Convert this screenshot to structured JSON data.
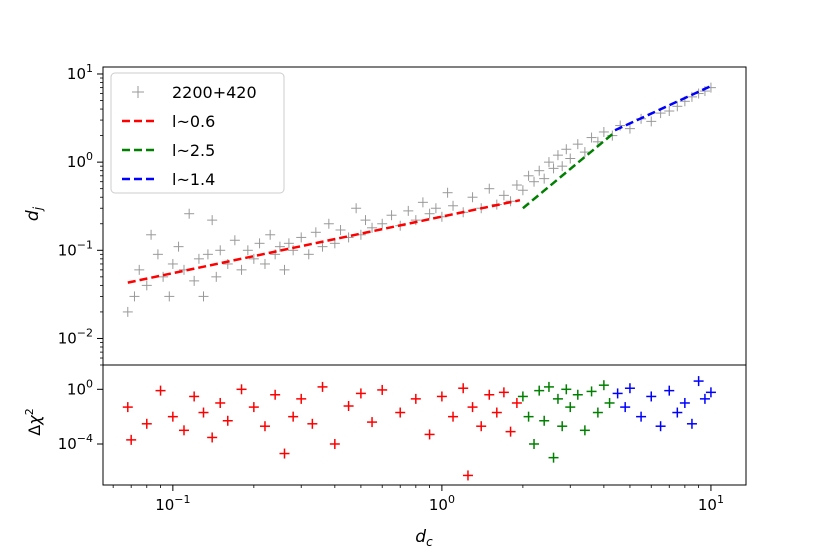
{
  "chart_data": {
    "type": "scatter",
    "panels": [
      {
        "id": "top",
        "xscale": "log",
        "yscale": "log",
        "xlim": [
          0.055,
          13.5
        ],
        "ylim": [
          0.005,
          12
        ],
        "ylabel": "d_j",
        "yticks": [
          {
            "value": 0.01,
            "base": "10",
            "exp": "−2"
          },
          {
            "value": 0.1,
            "base": "10",
            "exp": "−1"
          },
          {
            "value": 1,
            "base": "10",
            "exp": "0"
          },
          {
            "value": 10,
            "base": "10",
            "exp": "1"
          }
        ],
        "legend": {
          "placement": "upper-left",
          "entries": [
            {
              "label": "2200+420",
              "marker": "+",
              "color": "#999999"
            },
            {
              "label": "l~0.6",
              "line": "dashed",
              "color": "#ff0000"
            },
            {
              "label": "l~2.5",
              "line": "dashed",
              "color": "#008000"
            },
            {
              "label": "l~1.4",
              "line": "dashed",
              "color": "#0000ff"
            }
          ]
        },
        "scatter_series": {
          "name": "2200+420",
          "color": "#999999",
          "points": [
            [
              0.068,
              0.02
            ],
            [
              0.072,
              0.03
            ],
            [
              0.075,
              0.06
            ],
            [
              0.08,
              0.04
            ],
            [
              0.083,
              0.15
            ],
            [
              0.088,
              0.09
            ],
            [
              0.092,
              0.05
            ],
            [
              0.097,
              0.03
            ],
            [
              0.1,
              0.07
            ],
            [
              0.105,
              0.11
            ],
            [
              0.11,
              0.06
            ],
            [
              0.115,
              0.26
            ],
            [
              0.12,
              0.045
            ],
            [
              0.125,
              0.08
            ],
            [
              0.13,
              0.03
            ],
            [
              0.135,
              0.09
            ],
            [
              0.14,
              0.22
            ],
            [
              0.145,
              0.05
            ],
            [
              0.15,
              0.1
            ],
            [
              0.16,
              0.07
            ],
            [
              0.17,
              0.13
            ],
            [
              0.18,
              0.06
            ],
            [
              0.19,
              0.1
            ],
            [
              0.2,
              0.08
            ],
            [
              0.21,
              0.12
            ],
            [
              0.22,
              0.07
            ],
            [
              0.23,
              0.15
            ],
            [
              0.24,
              0.09
            ],
            [
              0.25,
              0.11
            ],
            [
              0.26,
              0.06
            ],
            [
              0.27,
              0.12
            ],
            [
              0.28,
              0.1
            ],
            [
              0.3,
              0.14
            ],
            [
              0.32,
              0.09
            ],
            [
              0.34,
              0.16
            ],
            [
              0.36,
              0.11
            ],
            [
              0.38,
              0.2
            ],
            [
              0.4,
              0.12
            ],
            [
              0.42,
              0.17
            ],
            [
              0.45,
              0.14
            ],
            [
              0.48,
              0.3
            ],
            [
              0.5,
              0.15
            ],
            [
              0.52,
              0.22
            ],
            [
              0.55,
              0.18
            ],
            [
              0.6,
              0.2
            ],
            [
              0.65,
              0.25
            ],
            [
              0.7,
              0.19
            ],
            [
              0.75,
              0.28
            ],
            [
              0.8,
              0.22
            ],
            [
              0.85,
              0.35
            ],
            [
              0.9,
              0.26
            ],
            [
              0.95,
              0.3
            ],
            [
              1.0,
              0.24
            ],
            [
              1.05,
              0.45
            ],
            [
              1.1,
              0.32
            ],
            [
              1.2,
              0.27
            ],
            [
              1.3,
              0.4
            ],
            [
              1.4,
              0.3
            ],
            [
              1.5,
              0.5
            ],
            [
              1.6,
              0.33
            ],
            [
              1.7,
              0.42
            ],
            [
              1.8,
              0.36
            ],
            [
              1.9,
              0.55
            ],
            [
              2.0,
              0.48
            ],
            [
              2.1,
              0.7
            ],
            [
              2.2,
              0.6
            ],
            [
              2.3,
              0.8
            ],
            [
              2.4,
              0.65
            ],
            [
              2.5,
              1.0
            ],
            [
              2.6,
              0.85
            ],
            [
              2.7,
              1.2
            ],
            [
              2.8,
              0.9
            ],
            [
              2.9,
              1.4
            ],
            [
              3.0,
              1.1
            ],
            [
              3.2,
              1.6
            ],
            [
              3.4,
              1.3
            ],
            [
              3.6,
              1.9
            ],
            [
              3.8,
              1.7
            ],
            [
              4.0,
              2.2
            ],
            [
              4.3,
              2.0
            ],
            [
              4.6,
              2.6
            ],
            [
              5.0,
              2.4
            ],
            [
              5.5,
              3.1
            ],
            [
              6.0,
              2.9
            ],
            [
              6.5,
              3.6
            ],
            [
              7.0,
              3.8
            ],
            [
              7.5,
              4.3
            ],
            [
              8.0,
              4.9
            ],
            [
              8.5,
              5.5
            ],
            [
              9.0,
              6.0
            ],
            [
              9.5,
              6.4
            ],
            [
              10.0,
              7.0
            ]
          ]
        },
        "fit_lines": [
          {
            "name": "l~0.6",
            "color": "#ff0000",
            "points": [
              [
                0.068,
                0.043
              ],
              [
                1.95,
                0.37
              ]
            ]
          },
          {
            "name": "l~2.5",
            "color": "#008000",
            "points": [
              [
                2.0,
                0.3
              ],
              [
                4.4,
                2.2
              ]
            ]
          },
          {
            "name": "l~1.4",
            "color": "#0000ff",
            "points": [
              [
                4.4,
                2.3
              ],
              [
                10.0,
                7.3
              ]
            ]
          }
        ]
      },
      {
        "id": "bottom",
        "xscale": "log",
        "yscale": "log",
        "xlim": [
          0.055,
          13.5
        ],
        "ylim": [
          1e-07,
          60
        ],
        "xlabel": "d_c",
        "ylabel": "Δχ^2",
        "xticks": [
          {
            "value": 0.1,
            "base": "10",
            "exp": "−1"
          },
          {
            "value": 1,
            "base": "10",
            "exp": "0"
          },
          {
            "value": 10,
            "base": "10",
            "exp": "1"
          }
        ],
        "yticks": [
          {
            "value": 0.0001,
            "base": "10",
            "exp": "−4"
          },
          {
            "value": 1,
            "base": "10",
            "exp": "0"
          }
        ],
        "series": [
          {
            "name": "",
            "color": "#ff0000",
            "points": [
              [
                0.068,
                0.05
              ],
              [
                0.07,
                0.0002
              ],
              [
                0.08,
                0.003
              ],
              [
                0.09,
                0.8
              ],
              [
                0.1,
                0.01
              ],
              [
                0.11,
                0.001
              ],
              [
                0.12,
                0.3
              ],
              [
                0.13,
                0.02
              ],
              [
                0.14,
                0.0003
              ],
              [
                0.15,
                0.1
              ],
              [
                0.16,
                0.005
              ],
              [
                0.18,
                1.0
              ],
              [
                0.2,
                0.05
              ],
              [
                0.22,
                0.002
              ],
              [
                0.24,
                0.4
              ],
              [
                0.26,
                2e-05
              ],
              [
                0.28,
                0.01
              ],
              [
                0.3,
                0.2
              ],
              [
                0.33,
                0.003
              ],
              [
                0.36,
                1.5
              ],
              [
                0.4,
                0.0001
              ],
              [
                0.45,
                0.06
              ],
              [
                0.5,
                0.5
              ],
              [
                0.55,
                0.004
              ],
              [
                0.6,
                0.9
              ],
              [
                0.7,
                0.02
              ],
              [
                0.8,
                0.2
              ],
              [
                0.9,
                0.0005
              ],
              [
                1.0,
                0.3
              ],
              [
                1.1,
                0.01
              ],
              [
                1.2,
                1.2
              ],
              [
                1.25,
                5e-07
              ],
              [
                1.3,
                0.05
              ],
              [
                1.4,
                0.002
              ],
              [
                1.5,
                0.4
              ],
              [
                1.6,
                0.02
              ],
              [
                1.7,
                0.6
              ],
              [
                1.8,
                0.0008
              ],
              [
                1.9,
                0.1
              ]
            ]
          },
          {
            "name": "",
            "color": "#008000",
            "points": [
              [
                2.0,
                0.3
              ],
              [
                2.1,
                0.01
              ],
              [
                2.2,
                0.0001
              ],
              [
                2.3,
                0.8
              ],
              [
                2.4,
                0.005
              ],
              [
                2.5,
                1.5
              ],
              [
                2.6,
                1e-05
              ],
              [
                2.7,
                0.2
              ],
              [
                2.8,
                0.002
              ],
              [
                2.9,
                1.0
              ],
              [
                3.0,
                0.05
              ],
              [
                3.2,
                0.4
              ],
              [
                3.4,
                0.001
              ],
              [
                3.6,
                0.7
              ],
              [
                3.8,
                0.02
              ],
              [
                4.0,
                2.0
              ],
              [
                4.2,
                0.1
              ]
            ]
          },
          {
            "name": "",
            "color": "#0000ff",
            "points": [
              [
                4.5,
                0.5
              ],
              [
                4.8,
                0.05
              ],
              [
                5.0,
                1.2
              ],
              [
                5.5,
                0.01
              ],
              [
                6.0,
                0.3
              ],
              [
                6.5,
                0.002
              ],
              [
                7.0,
                0.8
              ],
              [
                7.5,
                0.02
              ],
              [
                8.0,
                0.1
              ],
              [
                8.5,
                0.003
              ],
              [
                9.0,
                4.0
              ],
              [
                9.5,
                0.2
              ],
              [
                10.0,
                0.6
              ]
            ]
          }
        ]
      }
    ]
  }
}
